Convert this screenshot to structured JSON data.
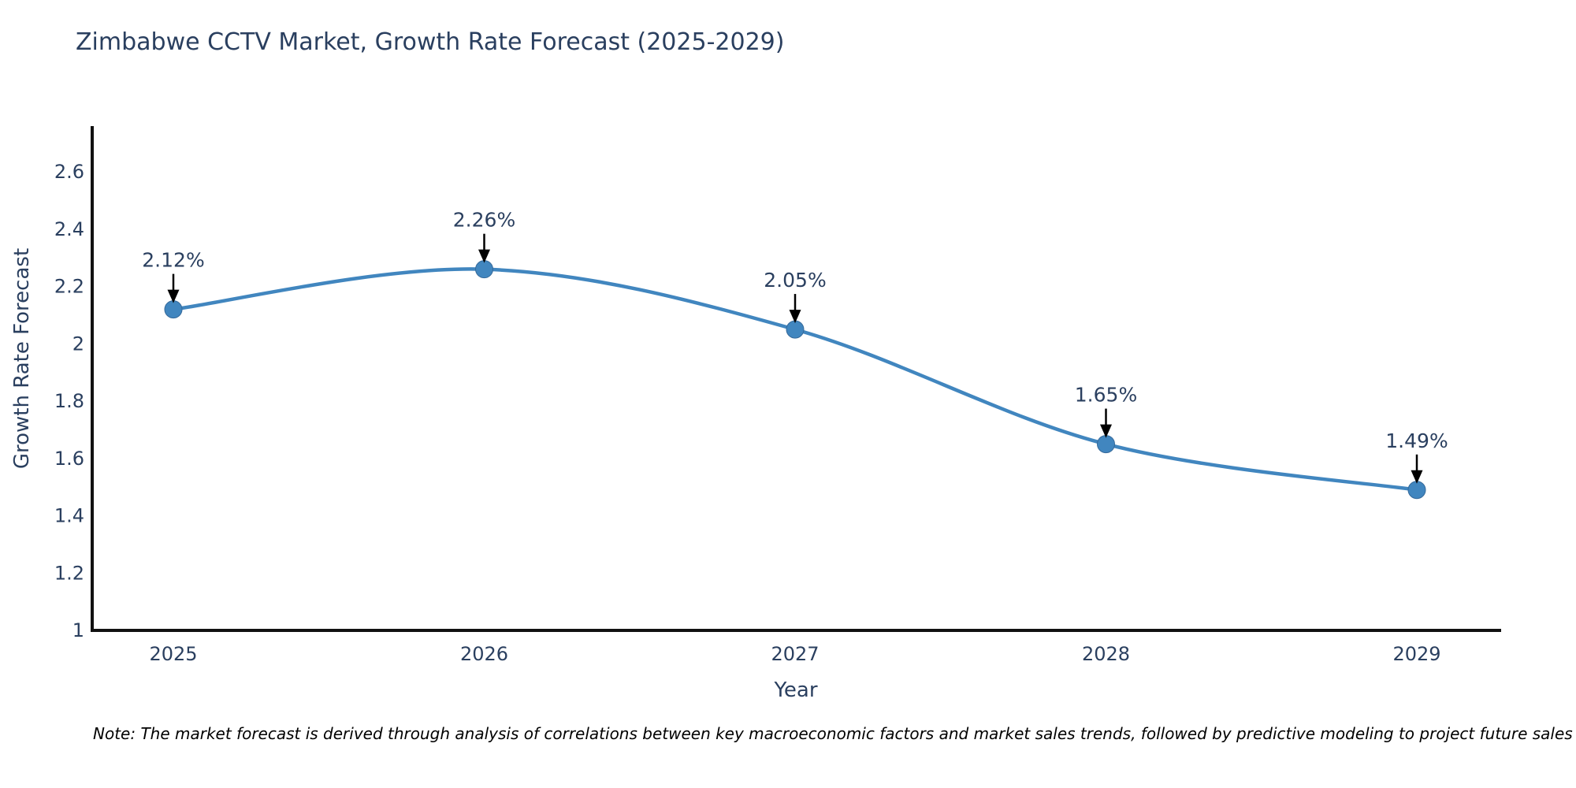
{
  "chart_data": {
    "type": "line",
    "line_shape": "spline",
    "title": "Zimbabwe CCTV Market, Growth Rate Forecast (2025-2029)",
    "xlabel": "Year",
    "ylabel": "Growth Rate Forecast",
    "x": [
      2025,
      2026,
      2027,
      2028,
      2029
    ],
    "values": [
      2.12,
      2.26,
      2.05,
      1.65,
      1.49
    ],
    "point_labels": [
      "2.12%",
      "2.26%",
      "2.05%",
      "1.65%",
      "1.49%"
    ],
    "x_ticks": [
      "2025",
      "2026",
      "2027",
      "2028",
      "2029"
    ],
    "y_ticks": [
      1,
      1.2,
      1.4,
      1.6,
      1.8,
      2,
      2.2,
      2.4,
      2.6
    ],
    "ylim": [
      1,
      2.76
    ],
    "grid": false,
    "legend": false,
    "colors": {
      "line": "#4186bf",
      "marker_fill": "#4186bf",
      "marker_edge": "#35699a",
      "annotation_arrow": "#000000",
      "title_text": "#2a3f5f",
      "tick_text": "#2a3f5f",
      "axis_line": "#111111",
      "background": "#ffffff"
    }
  },
  "note": "Note: The market forecast is derived through analysis of correlations between key macroeconomic factors and market sales trends, followed by predictive modeling to project future sales"
}
